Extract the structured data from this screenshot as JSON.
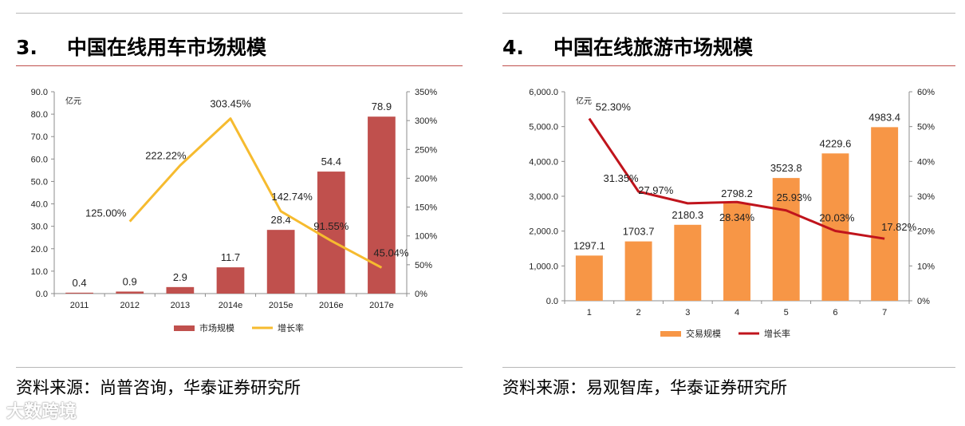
{
  "watermark": "大数跨境",
  "panels": [
    {
      "number": "3.",
      "title": "中国在线用车市场规模",
      "source": "资料来源：尚普咨询，华泰证券研究所"
    },
    {
      "number": "4.",
      "title": "中国在线旅游市场规模",
      "source": "资料来源：易观智库，华泰证券研究所"
    }
  ],
  "chart_data": [
    {
      "type": "bar",
      "unit_label": "亿元",
      "categories": [
        "2011",
        "2012",
        "2013",
        "2014e",
        "2015e",
        "2016e",
        "2017e"
      ],
      "series": [
        {
          "name": "市场规模",
          "kind": "bar",
          "axis": "left",
          "color": "#c0504d",
          "values": [
            0.4,
            0.9,
            2.9,
            11.7,
            28.4,
            54.4,
            78.9
          ],
          "labels": [
            "0.4",
            "0.9",
            "2.9",
            "11.7",
            "28.4",
            "54.4",
            "78.9"
          ]
        },
        {
          "name": "增长率",
          "kind": "line",
          "axis": "right",
          "color": "#f6bb2f",
          "values": [
            null,
            125.0,
            222.22,
            303.45,
            142.74,
            91.55,
            45.04
          ],
          "labels": [
            null,
            "125.00%",
            "222.22%",
            "303.45%",
            "142.74%",
            "91.55%",
            "45.04%"
          ]
        }
      ],
      "ylim": [
        0,
        90
      ],
      "y2lim": [
        0,
        350
      ],
      "yticks": [
        "0.0",
        "10.0",
        "20.0",
        "30.0",
        "40.0",
        "50.0",
        "60.0",
        "70.0",
        "80.0",
        "90.0"
      ],
      "y2ticks": [
        "0%",
        "50%",
        "100%",
        "150%",
        "200%",
        "250%",
        "300%",
        "350%"
      ],
      "legend_position": "bottom"
    },
    {
      "type": "bar",
      "unit_label": "亿元",
      "categories": [
        "1",
        "2",
        "3",
        "4",
        "5",
        "6",
        "7"
      ],
      "series": [
        {
          "name": "交易规模",
          "kind": "bar",
          "axis": "left",
          "color": "#f79646",
          "values": [
            1297.1,
            1703.7,
            2180.3,
            2798.2,
            3523.8,
            4229.6,
            4983.4
          ],
          "labels": [
            "1297.1",
            "1703.7",
            "2180.3",
            "2798.2",
            "3523.8",
            "4229.6",
            "4983.4"
          ]
        },
        {
          "name": "增长率",
          "kind": "line",
          "axis": "right",
          "color": "#c0141c",
          "values": [
            52.3,
            31.35,
            27.97,
            28.34,
            25.93,
            20.03,
            17.82
          ],
          "labels": [
            "52.30%",
            "31.35%",
            "27.97%",
            "28.34%",
            "25.93%",
            "20.03%",
            "17.82%"
          ]
        }
      ],
      "ylim": [
        0,
        6000
      ],
      "y2lim": [
        0,
        60
      ],
      "yticks": [
        "0.0",
        "1,000.0",
        "2,000.0",
        "3,000.0",
        "4,000.0",
        "5,000.0",
        "6,000.0"
      ],
      "y2ticks": [
        "0%",
        "10%",
        "20%",
        "30%",
        "40%",
        "50%",
        "60%"
      ],
      "legend_position": "bottom"
    }
  ]
}
